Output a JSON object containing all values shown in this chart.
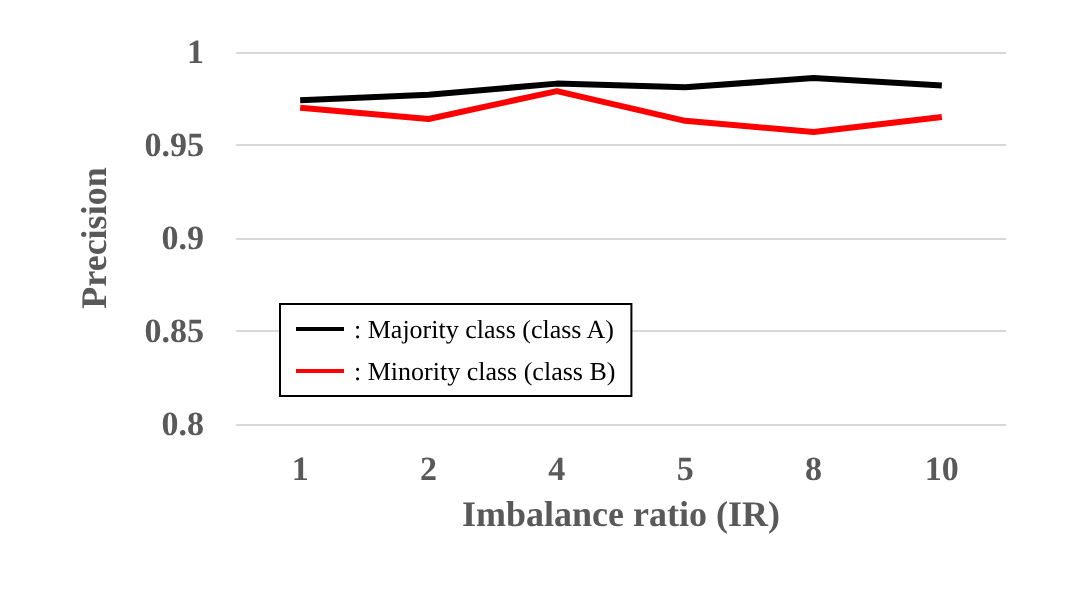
{
  "chart_data": {
    "type": "line",
    "xlabel": "Imbalance ratio (IR)",
    "ylabel": "Precision",
    "categories": [
      "1",
      "2",
      "4",
      "5",
      "8",
      "10"
    ],
    "series": [
      {
        "name": ": Majority class (class A)",
        "color": "#000000",
        "values": [
          0.974,
          0.977,
          0.983,
          0.981,
          0.986,
          0.982
        ]
      },
      {
        "name": ": Minority class (class B)",
        "color": "#ff0000",
        "values": [
          0.97,
          0.964,
          0.979,
          0.963,
          0.957,
          0.965
        ]
      }
    ],
    "ylim": [
      0.8,
      1
    ],
    "yticks": [
      0.8,
      0.85,
      0.9,
      0.95,
      1
    ],
    "grid": "y",
    "legend": "bottom left",
    "marker": "none",
    "line_style": "solid"
  }
}
